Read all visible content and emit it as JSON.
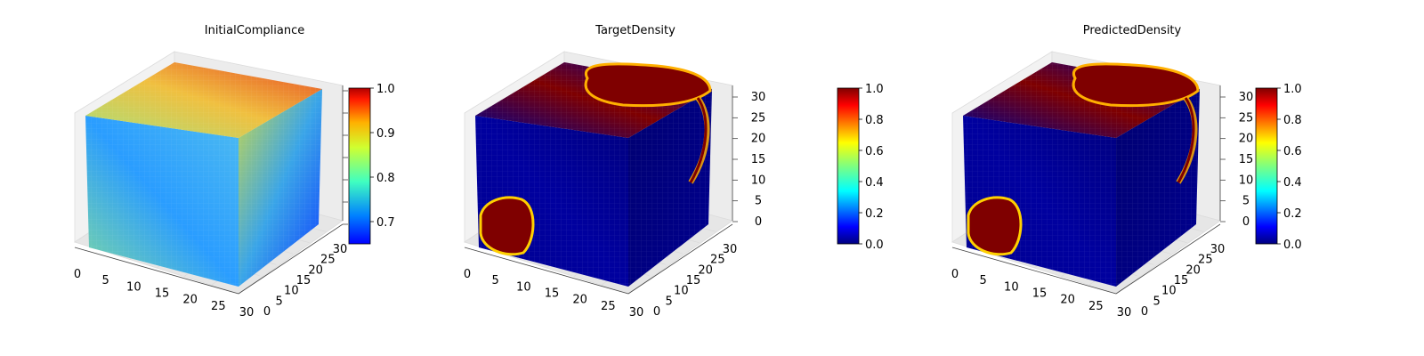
{
  "colormap": [
    "#00007f",
    "#0000ff",
    "#007fff",
    "#00ffff",
    "#7fff7f",
    "#ffff00",
    "#ff7f00",
    "#ff0000",
    "#7f0000"
  ],
  "chart_data": [
    {
      "type": "heatmap",
      "subtype": "3d-voxel-cube",
      "title": "InitialCompliance",
      "axis_ticks": {
        "x": [
          0,
          5,
          10,
          15,
          20,
          25,
          30
        ],
        "y": [
          0,
          5,
          10,
          15,
          20,
          25,
          30
        ],
        "z": []
      },
      "colorbar": {
        "range": [
          0.65,
          1.0
        ],
        "ticks": [
          "0.7",
          "0.8",
          "0.9",
          "1.0"
        ],
        "tick_values": [
          0.7,
          0.8,
          0.9,
          1.0
        ]
      },
      "value_range": [
        0.65,
        1.0
      ]
    },
    {
      "type": "heatmap",
      "subtype": "3d-voxel-cube",
      "title": "TargetDensity",
      "axis_ticks": {
        "x": [
          0,
          5,
          10,
          15,
          20,
          25,
          30
        ],
        "y": [
          0,
          5,
          10,
          15,
          20,
          25,
          30
        ],
        "z": [
          0,
          5,
          10,
          15,
          20,
          25,
          30
        ]
      },
      "colorbar": {
        "range": [
          0.0,
          1.0
        ],
        "ticks": [
          "0.0",
          "0.2",
          "0.4",
          "0.6",
          "0.8",
          "1.0"
        ],
        "tick_values": [
          0.0,
          0.2,
          0.4,
          0.6,
          0.8,
          1.0
        ]
      },
      "value_range": [
        0.0,
        1.0
      ]
    },
    {
      "type": "heatmap",
      "subtype": "3d-voxel-cube",
      "title": "PredictedDensity",
      "axis_ticks": {
        "x": [
          0,
          5,
          10,
          15,
          20,
          25,
          30
        ],
        "y": [
          0,
          5,
          10,
          15,
          20,
          25,
          30
        ],
        "z": [
          0,
          5,
          10,
          15,
          20,
          25,
          30
        ]
      },
      "colorbar": {
        "range": [
          0.0,
          1.0
        ],
        "ticks": [
          "0.0",
          "0.2",
          "0.4",
          "0.6",
          "0.8",
          "1.0"
        ],
        "tick_values": [
          0.0,
          0.2,
          0.4,
          0.6,
          0.8,
          1.0
        ]
      },
      "value_range": [
        0.0,
        1.0
      ]
    }
  ]
}
